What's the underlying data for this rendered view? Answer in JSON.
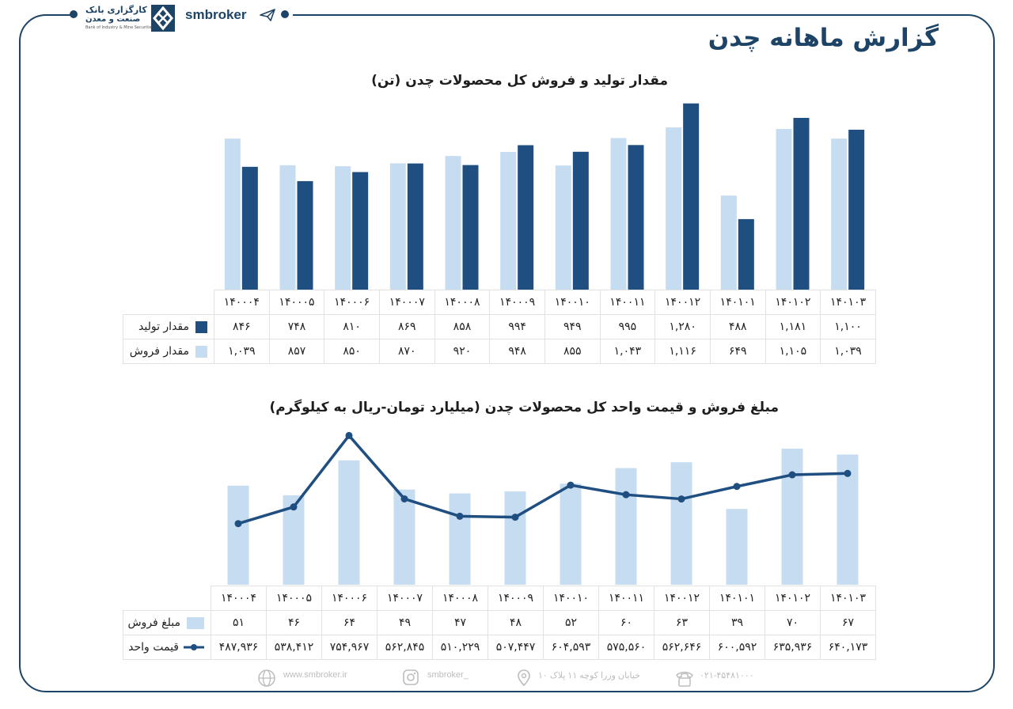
{
  "header": {
    "bank_name_line1": "کارگزاری بانک",
    "bank_name_line2": "صنعت و معدن",
    "bank_name_en": "Bank of Industry & Mine Securities",
    "broker_name": "smbroker",
    "page_title": "گزارش ماهانه چدن"
  },
  "chart_data": [
    {
      "type": "bar",
      "title": "مقدار تولید و فروش کل محصولات چدن (تن)",
      "categories": [
        "۱۴۰۰۰۴",
        "۱۴۰۰۰۵",
        "۱۴۰۰۰۶",
        "۱۴۰۰۰۷",
        "۱۴۰۰۰۸",
        "۱۴۰۰۰۹",
        "۱۴۰۰۱۰",
        "۱۴۰۰۱۱",
        "۱۴۰۰۱۲",
        "۱۴۰۱۰۱",
        "۱۴۰۱۰۲",
        "۱۴۰۱۰۳"
      ],
      "series": [
        {
          "name": "مقدار تولید",
          "color": "#1f4e80",
          "values": [
            846,
            748,
            810,
            869,
            858,
            994,
            949,
            995,
            1280,
            488,
            1181,
            1100
          ],
          "labels": [
            "۸۴۶",
            "۷۴۸",
            "۸۱۰",
            "۸۶۹",
            "۸۵۸",
            "۹۹۴",
            "۹۴۹",
            "۹۹۵",
            "۱,۲۸۰",
            "۴۸۸",
            "۱,۱۸۱",
            "۱,۱۰۰"
          ]
        },
        {
          "name": "مقدار فروش",
          "color": "#c6dcf0",
          "values": [
            1039,
            857,
            850,
            870,
            920,
            948,
            855,
            1043,
            1116,
            649,
            1105,
            1039
          ],
          "labels": [
            "۱,۰۳۹",
            "۸۵۷",
            "۸۵۰",
            "۸۷۰",
            "۹۲۰",
            "۹۴۸",
            "۸۵۵",
            "۱,۰۴۳",
            "۱,۱۱۶",
            "۶۴۹",
            "۱,۱۰۵",
            "۱,۰۳۹"
          ]
        }
      ],
      "ylim": [
        0,
        1300
      ]
    },
    {
      "type": "bar",
      "title": "مبلغ فروش و قیمت واحد کل محصولات چدن (میلیارد تومان-ریال به کیلوگرم)",
      "categories": [
        "۱۴۰۰۰۴",
        "۱۴۰۰۰۵",
        "۱۴۰۰۰۶",
        "۱۴۰۰۰۷",
        "۱۴۰۰۰۸",
        "۱۴۰۰۰۹",
        "۱۴۰۰۱۰",
        "۱۴۰۰۱۱",
        "۱۴۰۰۱۲",
        "۱۴۰۱۰۱",
        "۱۴۰۱۰۲",
        "۱۴۰۱۰۳"
      ],
      "series": [
        {
          "name": "مبلغ فروش",
          "kind": "bar",
          "color": "#c6dcf0",
          "values": [
            51,
            46,
            64,
            49,
            47,
            48,
            52,
            60,
            63,
            39,
            70,
            67
          ],
          "labels": [
            "۵۱",
            "۴۶",
            "۶۴",
            "۴۹",
            "۴۷",
            "۴۸",
            "۵۲",
            "۶۰",
            "۶۳",
            "۳۹",
            "۷۰",
            "۶۷"
          ]
        },
        {
          "name": "قیمت واحد",
          "kind": "line",
          "color": "#1f4e80",
          "values": [
            487936,
            538412,
            754967,
            562845,
            510229,
            507447,
            604593,
            575560,
            562646,
            600592,
            635936,
            640173
          ],
          "labels": [
            "۴۸۷,۹۳۶",
            "۵۳۸,۴۱۲",
            "۷۵۴,۹۶۷",
            "۵۶۲,۸۴۵",
            "۵۱۰,۲۲۹",
            "۵۰۷,۴۴۷",
            "۶۰۴,۵۹۳",
            "۵۷۵,۵۶۰",
            "۵۶۲,۶۴۶",
            "۶۰۰,۵۹۲",
            "۶۳۵,۹۳۶",
            "۶۴۰,۱۷۳"
          ]
        }
      ]
    }
  ],
  "footer": {
    "website": "www.smbroker.ir",
    "instagram": "smbroker_",
    "address": "خیابان وزرا کوچه ۱۱ پلاک ۱۰",
    "phone": "۰۲۱-۴۵۴۸۱۰۰۰"
  }
}
